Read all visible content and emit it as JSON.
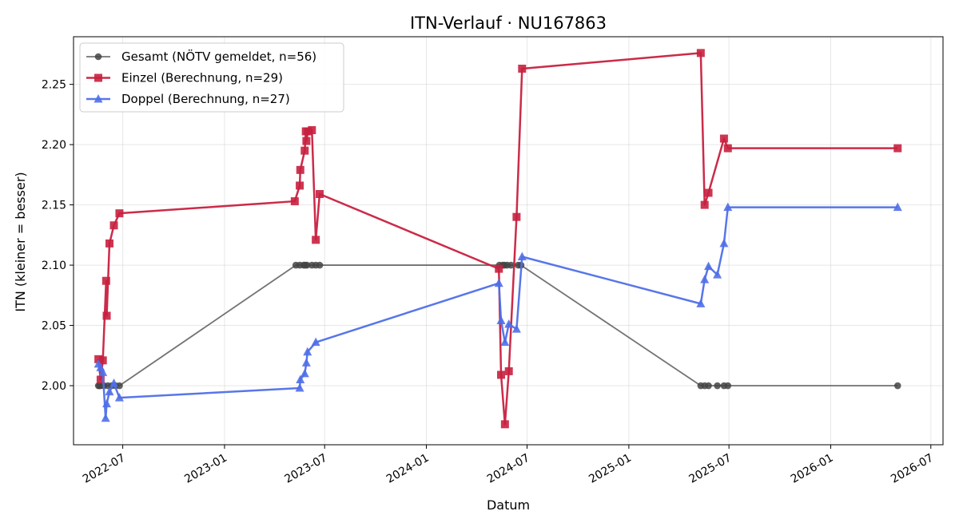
{
  "chart_data": {
    "type": "line",
    "title": "ITN-Verlauf · NU167863",
    "xlabel": "Datum",
    "ylabel": "ITN  (kleiner = besser)",
    "x_ticks": [
      "2022-07",
      "2023-01",
      "2023-07",
      "2024-01",
      "2024-07",
      "2025-01",
      "2025-07",
      "2026-01",
      "2026-07"
    ],
    "y_ticks": [
      "2.00",
      "2.05",
      "2.10",
      "2.15",
      "2.20",
      "2.25"
    ],
    "xlim": [
      "2022-04-03",
      "2026-07-23"
    ],
    "ylim": [
      1.951,
      2.2895
    ],
    "grid": true,
    "legend_position": "top-left",
    "series": [
      {
        "name": "Gesamt (NÖTV gemeldet, n=56)",
        "color": "#444444",
        "marker": "circle",
        "points": [
          [
            "2022-05-18",
            2.0
          ],
          [
            "2022-05-20",
            2.0
          ],
          [
            "2022-05-22",
            2.0
          ],
          [
            "2022-05-28",
            2.0
          ],
          [
            "2022-06-04",
            2.0
          ],
          [
            "2022-06-11",
            2.0
          ],
          [
            "2022-06-18",
            2.0
          ],
          [
            "2022-06-25",
            2.0
          ],
          [
            "2023-05-10",
            2.1
          ],
          [
            "2023-05-17",
            2.1
          ],
          [
            "2023-05-24",
            2.1
          ],
          [
            "2023-05-27",
            2.1
          ],
          [
            "2023-05-30",
            2.1
          ],
          [
            "2023-06-08",
            2.1
          ],
          [
            "2023-06-15",
            2.1
          ],
          [
            "2023-06-22",
            2.1
          ],
          [
            "2024-05-12",
            2.1
          ],
          [
            "2024-05-18",
            2.1
          ],
          [
            "2024-05-21",
            2.1
          ],
          [
            "2024-05-26",
            2.1
          ],
          [
            "2024-06-02",
            2.1
          ],
          [
            "2024-06-15",
            2.1
          ],
          [
            "2024-06-20",
            2.1
          ],
          [
            "2025-05-11",
            2.0
          ],
          [
            "2025-05-18",
            2.0
          ],
          [
            "2025-05-25",
            2.0
          ],
          [
            "2025-06-10",
            2.0
          ],
          [
            "2025-06-22",
            2.0
          ],
          [
            "2025-06-29",
            2.0
          ],
          [
            "2026-05-02",
            2.0
          ]
        ]
      },
      {
        "name": "Einzel (Berechnung, n=29)",
        "color": "#c8203f",
        "marker": "square",
        "points": [
          [
            "2022-05-18",
            2.022
          ],
          [
            "2022-05-22",
            2.005
          ],
          [
            "2022-05-26",
            2.021
          ],
          [
            "2022-06-01",
            2.087
          ],
          [
            "2022-06-02",
            2.058
          ],
          [
            "2022-06-07",
            2.118
          ],
          [
            "2022-06-15",
            2.133
          ],
          [
            "2022-06-25",
            2.143
          ],
          [
            "2023-05-08",
            2.153
          ],
          [
            "2023-05-17",
            2.166
          ],
          [
            "2023-05-18",
            2.179
          ],
          [
            "2023-05-26",
            2.195
          ],
          [
            "2023-05-28",
            2.211
          ],
          [
            "2023-05-29",
            2.203
          ],
          [
            "2023-06-01",
            2.211
          ],
          [
            "2023-06-08",
            2.212
          ],
          [
            "2023-06-15",
            2.121
          ],
          [
            "2023-06-22",
            2.159
          ],
          [
            "2024-05-11",
            2.097
          ],
          [
            "2024-05-15",
            2.009
          ],
          [
            "2024-05-22",
            1.968
          ],
          [
            "2024-05-29",
            2.012
          ],
          [
            "2024-06-12",
            2.14
          ],
          [
            "2024-06-22",
            2.263
          ],
          [
            "2025-05-11",
            2.276
          ],
          [
            "2025-05-18",
            2.15
          ],
          [
            "2025-05-25",
            2.16
          ],
          [
            "2025-06-22",
            2.205
          ],
          [
            "2025-06-29",
            2.197
          ],
          [
            "2026-05-02",
            2.197
          ]
        ]
      },
      {
        "name": "Doppel (Berechnung, n=27)",
        "color": "#4f6fe8",
        "marker": "triangle",
        "points": [
          [
            "2022-05-18",
            2.018
          ],
          [
            "2022-05-22",
            2.015
          ],
          [
            "2022-05-26",
            2.011
          ],
          [
            "2022-05-31",
            1.973
          ],
          [
            "2022-06-02",
            1.985
          ],
          [
            "2022-06-07",
            1.995
          ],
          [
            "2022-06-15",
            2.002
          ],
          [
            "2022-06-25",
            1.99
          ],
          [
            "2023-05-17",
            1.998
          ],
          [
            "2023-05-18",
            2.005
          ],
          [
            "2023-05-26",
            2.01
          ],
          [
            "2023-05-29",
            2.019
          ],
          [
            "2023-05-31",
            2.028
          ],
          [
            "2023-06-15",
            2.036
          ],
          [
            "2024-05-11",
            2.085
          ],
          [
            "2024-05-15",
            2.054
          ],
          [
            "2024-05-22",
            2.036
          ],
          [
            "2024-05-29",
            2.051
          ],
          [
            "2024-06-12",
            2.047
          ],
          [
            "2024-06-22",
            2.107
          ],
          [
            "2025-05-11",
            2.068
          ],
          [
            "2025-05-18",
            2.088
          ],
          [
            "2025-05-25",
            2.099
          ],
          [
            "2025-06-10",
            2.092
          ],
          [
            "2025-06-22",
            2.118
          ],
          [
            "2025-06-29",
            2.148
          ],
          [
            "2026-05-02",
            2.148
          ]
        ]
      }
    ]
  }
}
